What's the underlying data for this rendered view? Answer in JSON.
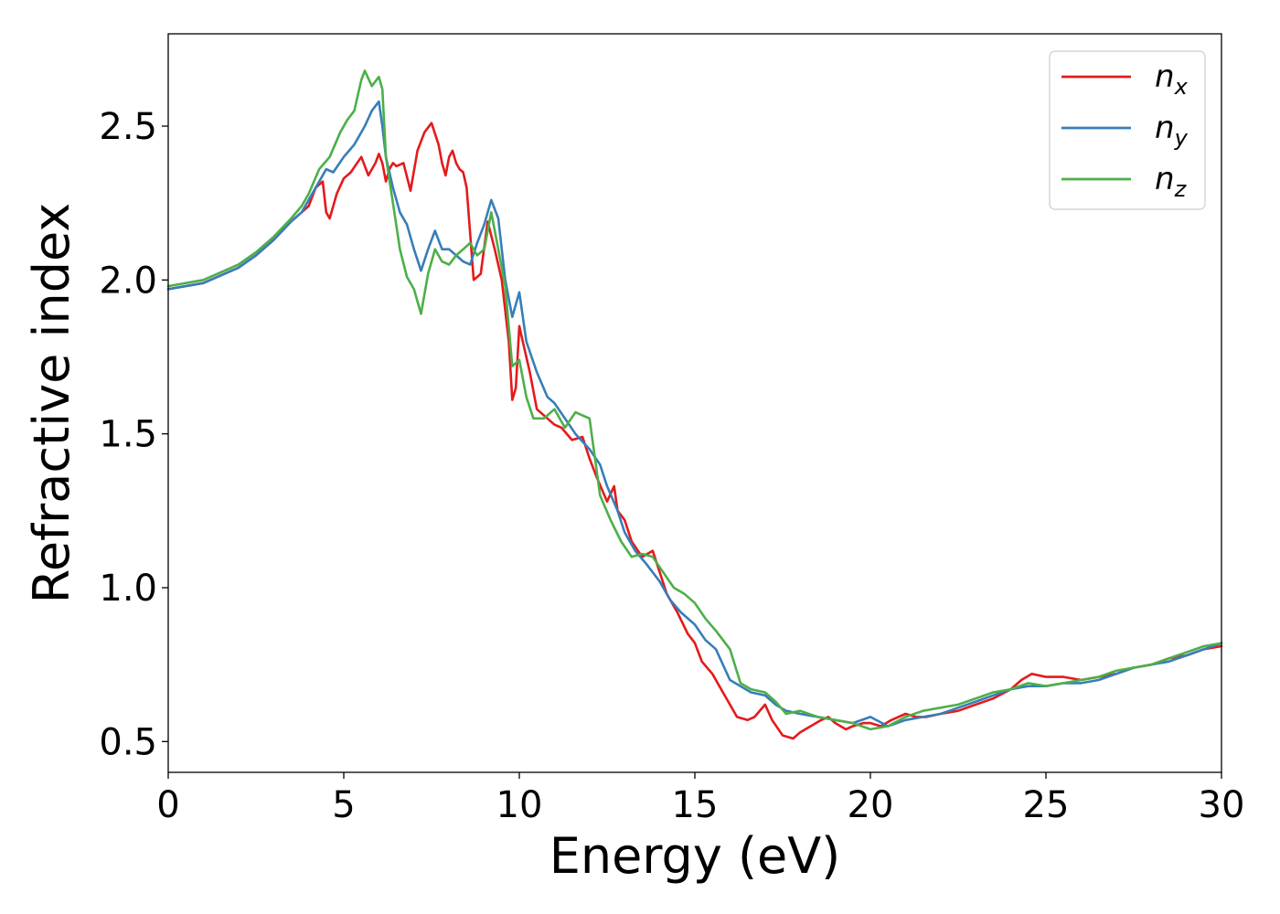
{
  "chart_data": {
    "type": "line",
    "xlabel": "Energy (eV)",
    "ylabel": "Refractive index",
    "xlim": [
      0,
      30
    ],
    "ylim": [
      0.4,
      2.8
    ],
    "x_ticks": [
      0,
      5,
      10,
      15,
      20,
      25,
      30
    ],
    "y_ticks": [
      0.5,
      1.0,
      1.5,
      2.0,
      2.5
    ],
    "x_tick_labels": [
      "0",
      "5",
      "10",
      "15",
      "20",
      "25",
      "30"
    ],
    "y_tick_labels": [
      "0.5",
      "1.0",
      "1.5",
      "2.0",
      "2.5"
    ],
    "grid": false,
    "legend_position": "top-right",
    "series": [
      {
        "name": "n_x",
        "legend_base": "n",
        "legend_sub": "x",
        "color": "#e41a1c",
        "x": [
          0,
          1,
          2,
          2.5,
          3,
          3.5,
          3.8,
          4.0,
          4.2,
          4.4,
          4.5,
          4.6,
          4.8,
          5.0,
          5.2,
          5.5,
          5.7,
          5.9,
          6.0,
          6.1,
          6.2,
          6.3,
          6.4,
          6.5,
          6.7,
          6.9,
          7.1,
          7.3,
          7.5,
          7.7,
          7.8,
          7.9,
          8.0,
          8.1,
          8.2,
          8.3,
          8.4,
          8.5,
          8.7,
          8.9,
          9.1,
          9.3,
          9.5,
          9.7,
          9.8,
          9.9,
          10.0,
          10.1,
          10.3,
          10.5,
          10.8,
          11.0,
          11.2,
          11.5,
          11.8,
          12.0,
          12.2,
          12.5,
          12.7,
          12.8,
          13.0,
          13.2,
          13.5,
          13.8,
          14.0,
          14.2,
          14.5,
          14.8,
          15.0,
          15.2,
          15.5,
          15.8,
          16.0,
          16.2,
          16.5,
          16.7,
          17.0,
          17.2,
          17.5,
          17.8,
          18.0,
          18.3,
          18.6,
          18.8,
          19.0,
          19.3,
          19.5,
          19.8,
          20.0,
          20.3,
          20.6,
          21.0,
          21.3,
          21.6,
          22.0,
          22.5,
          23.0,
          23.5,
          24.0,
          24.3,
          24.6,
          25.0,
          25.5,
          26.0,
          26.5,
          27.0,
          27.5,
          28.0,
          28.5,
          29.0,
          29.5,
          30.0
        ],
        "y": [
          1.97,
          1.99,
          2.04,
          2.08,
          2.13,
          2.19,
          2.22,
          2.24,
          2.3,
          2.32,
          2.22,
          2.2,
          2.28,
          2.33,
          2.35,
          2.4,
          2.34,
          2.38,
          2.41,
          2.38,
          2.32,
          2.36,
          2.38,
          2.37,
          2.38,
          2.29,
          2.42,
          2.48,
          2.51,
          2.44,
          2.38,
          2.34,
          2.4,
          2.42,
          2.38,
          2.36,
          2.35,
          2.3,
          2.0,
          2.02,
          2.19,
          2.1,
          2.0,
          1.8,
          1.61,
          1.65,
          1.85,
          1.8,
          1.7,
          1.58,
          1.55,
          1.53,
          1.52,
          1.48,
          1.49,
          1.42,
          1.36,
          1.28,
          1.33,
          1.25,
          1.22,
          1.15,
          1.1,
          1.12,
          1.05,
          0.98,
          0.92,
          0.85,
          0.82,
          0.76,
          0.72,
          0.66,
          0.62,
          0.58,
          0.57,
          0.58,
          0.62,
          0.57,
          0.52,
          0.51,
          0.53,
          0.55,
          0.57,
          0.58,
          0.56,
          0.54,
          0.55,
          0.56,
          0.56,
          0.55,
          0.57,
          0.59,
          0.58,
          0.58,
          0.59,
          0.6,
          0.62,
          0.64,
          0.67,
          0.7,
          0.72,
          0.71,
          0.71,
          0.7,
          0.71,
          0.72,
          0.74,
          0.75,
          0.77,
          0.78,
          0.8,
          0.81
        ]
      },
      {
        "name": "n_y",
        "legend_base": "n",
        "legend_sub": "y",
        "color": "#377eb8",
        "x": [
          0,
          1,
          2,
          2.5,
          3,
          3.5,
          3.8,
          4.0,
          4.2,
          4.5,
          4.7,
          5.0,
          5.3,
          5.6,
          5.8,
          6.0,
          6.1,
          6.2,
          6.4,
          6.6,
          6.8,
          7.0,
          7.2,
          7.4,
          7.6,
          7.8,
          8.0,
          8.2,
          8.4,
          8.6,
          8.8,
          9.0,
          9.2,
          9.4,
          9.6,
          9.8,
          10.0,
          10.2,
          10.5,
          10.8,
          11.0,
          11.3,
          11.6,
          12.0,
          12.3,
          12.5,
          12.8,
          13.0,
          13.3,
          13.6,
          14.0,
          14.3,
          14.6,
          15.0,
          15.3,
          15.6,
          16.0,
          16.3,
          16.6,
          17.0,
          17.3,
          17.6,
          18.0,
          18.5,
          19.0,
          19.5,
          20.0,
          20.5,
          21.0,
          21.5,
          22.0,
          22.5,
          23.0,
          23.5,
          24.0,
          24.5,
          25.0,
          25.5,
          26.0,
          26.5,
          27.0,
          27.5,
          28.0,
          28.5,
          29.0,
          29.5,
          30.0
        ],
        "y": [
          1.97,
          1.99,
          2.04,
          2.08,
          2.13,
          2.19,
          2.22,
          2.26,
          2.3,
          2.36,
          2.35,
          2.4,
          2.44,
          2.5,
          2.55,
          2.58,
          2.5,
          2.4,
          2.3,
          2.22,
          2.18,
          2.1,
          2.03,
          2.1,
          2.16,
          2.1,
          2.1,
          2.08,
          2.06,
          2.05,
          2.12,
          2.18,
          2.26,
          2.2,
          2.0,
          1.88,
          1.96,
          1.8,
          1.7,
          1.62,
          1.6,
          1.55,
          1.5,
          1.45,
          1.4,
          1.33,
          1.25,
          1.18,
          1.12,
          1.08,
          1.02,
          0.96,
          0.92,
          0.88,
          0.83,
          0.8,
          0.7,
          0.68,
          0.66,
          0.65,
          0.62,
          0.6,
          0.59,
          0.58,
          0.57,
          0.56,
          0.58,
          0.55,
          0.57,
          0.58,
          0.59,
          0.61,
          0.63,
          0.65,
          0.67,
          0.68,
          0.68,
          0.69,
          0.69,
          0.7,
          0.72,
          0.74,
          0.75,
          0.76,
          0.78,
          0.8,
          0.82
        ]
      },
      {
        "name": "n_z",
        "legend_base": "n",
        "legend_sub": "z",
        "color": "#4daf4a",
        "x": [
          0,
          1,
          2,
          2.5,
          3,
          3.5,
          3.8,
          4.0,
          4.3,
          4.6,
          4.9,
          5.1,
          5.3,
          5.5,
          5.6,
          5.8,
          6.0,
          6.1,
          6.2,
          6.4,
          6.6,
          6.8,
          7.0,
          7.2,
          7.4,
          7.6,
          7.8,
          8.0,
          8.2,
          8.4,
          8.6,
          8.8,
          9.0,
          9.2,
          9.4,
          9.6,
          9.8,
          10.0,
          10.2,
          10.4,
          10.7,
          11.0,
          11.3,
          11.6,
          12.0,
          12.3,
          12.6,
          12.9,
          13.2,
          13.5,
          13.8,
          14.1,
          14.4,
          14.7,
          15.0,
          15.3,
          15.6,
          16.0,
          16.3,
          16.6,
          17.0,
          17.3,
          17.6,
          18.0,
          18.5,
          19.0,
          19.5,
          20.0,
          20.5,
          21.0,
          21.5,
          22.0,
          22.5,
          23.0,
          23.5,
          24.0,
          24.5,
          25.0,
          25.5,
          26.0,
          26.5,
          27.0,
          27.5,
          28.0,
          28.5,
          29.0,
          29.5,
          30.0
        ],
        "y": [
          1.98,
          2.0,
          2.05,
          2.09,
          2.14,
          2.2,
          2.24,
          2.28,
          2.36,
          2.4,
          2.48,
          2.52,
          2.55,
          2.65,
          2.68,
          2.63,
          2.66,
          2.62,
          2.4,
          2.25,
          2.1,
          2.01,
          1.97,
          1.89,
          2.02,
          2.1,
          2.06,
          2.05,
          2.08,
          2.1,
          2.12,
          2.08,
          2.1,
          2.22,
          2.1,
          1.98,
          1.72,
          1.74,
          1.62,
          1.55,
          1.55,
          1.58,
          1.52,
          1.57,
          1.55,
          1.3,
          1.22,
          1.15,
          1.1,
          1.11,
          1.1,
          1.05,
          1.0,
          0.98,
          0.95,
          0.9,
          0.86,
          0.8,
          0.69,
          0.67,
          0.66,
          0.63,
          0.59,
          0.6,
          0.58,
          0.57,
          0.56,
          0.54,
          0.55,
          0.58,
          0.6,
          0.61,
          0.62,
          0.64,
          0.66,
          0.67,
          0.69,
          0.68,
          0.69,
          0.7,
          0.71,
          0.73,
          0.74,
          0.75,
          0.77,
          0.79,
          0.81,
          0.82
        ]
      }
    ]
  }
}
